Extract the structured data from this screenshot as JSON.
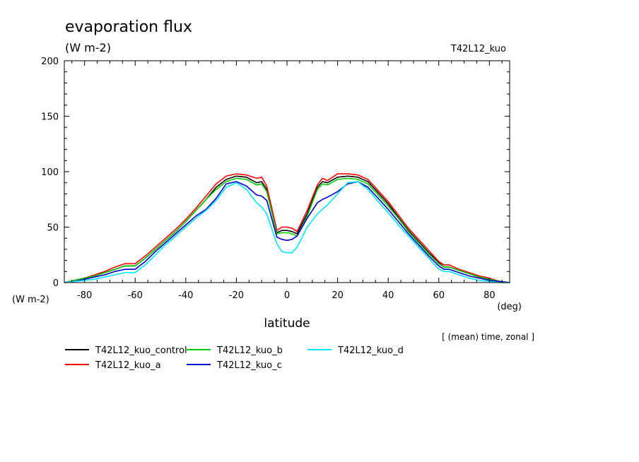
{
  "chart_data": {
    "type": "line",
    "title": "evaporation flux",
    "units": "(W m-2)",
    "dataset": "T42L12_kuo",
    "xlabel": "latitude",
    "ylabel_unit": "(W m-2)",
    "xunit": "(deg)",
    "note": "[ (mean) time, zonal ]",
    "xlim": [
      -88,
      88
    ],
    "ylim": [
      0,
      200
    ],
    "xticks": [
      -80,
      -60,
      -40,
      -20,
      0,
      20,
      40,
      60,
      80
    ],
    "yticks": [
      0,
      50,
      100,
      150,
      200
    ],
    "x": [
      -88,
      -84,
      -80,
      -76,
      -72,
      -68,
      -64,
      -60,
      -56,
      -52,
      -48,
      -44,
      -40,
      -36,
      -32,
      -28,
      -24,
      -20,
      -16,
      -12,
      -10,
      -8,
      -4,
      -2,
      0,
      2,
      4,
      8,
      12,
      14,
      16,
      20,
      24,
      28,
      32,
      36,
      40,
      44,
      48,
      52,
      56,
      60,
      62,
      64,
      68,
      72,
      76,
      80,
      84,
      88
    ],
    "series": [
      {
        "name": "T42L12_kuo_control",
        "color": "#000000",
        "values": [
          0,
          2,
          4,
          6,
          9,
          12,
          15,
          15,
          22,
          30,
          38,
          46,
          55,
          65,
          75,
          86,
          93,
          96,
          95,
          90,
          91,
          84,
          45,
          47,
          47,
          46,
          44,
          62,
          86,
          91,
          90,
          95,
          96,
          95,
          91,
          81,
          71,
          59,
          47,
          37,
          27,
          18,
          14,
          14,
          11,
          8,
          5,
          3,
          1,
          0
        ]
      },
      {
        "name": "T42L12_kuo_a",
        "color": "#ff0000",
        "values": [
          0,
          2,
          4,
          7,
          10,
          14,
          17,
          17,
          24,
          32,
          40,
          48,
          57,
          67,
          78,
          89,
          96,
          98,
          97,
          94,
          95,
          87,
          47,
          50,
          50,
          49,
          46,
          65,
          88,
          94,
          92,
          98,
          98,
          97,
          93,
          83,
          73,
          61,
          49,
          39,
          29,
          19,
          16,
          16,
          12,
          9,
          6,
          4,
          1,
          0
        ]
      },
      {
        "name": "T42L12_kuo_b",
        "color": "#00cc00",
        "values": [
          0,
          2,
          4,
          6,
          9,
          12,
          15,
          15,
          22,
          30,
          38,
          46,
          55,
          65,
          75,
          84,
          91,
          94,
          93,
          88,
          89,
          82,
          44,
          45,
          45,
          44,
          42,
          60,
          84,
          89,
          88,
          93,
          94,
          93,
          89,
          79,
          69,
          58,
          46,
          36,
          26,
          17,
          14,
          14,
          11,
          8,
          5,
          3,
          1,
          0
        ]
      },
      {
        "name": "T42L12_kuo_c",
        "color": "#0000cc",
        "values": [
          0,
          1,
          3,
          5,
          7,
          10,
          12,
          12,
          19,
          28,
          36,
          44,
          52,
          60,
          66,
          76,
          89,
          91,
          87,
          79,
          78,
          74,
          41,
          39,
          38,
          39,
          42,
          58,
          72,
          75,
          77,
          82,
          89,
          91,
          86,
          76,
          66,
          55,
          44,
          34,
          24,
          15,
          12,
          12,
          9,
          6,
          4,
          2,
          1,
          0
        ]
      },
      {
        "name": "T42L12_kuo_d",
        "color": "#00e5ff",
        "values": [
          0,
          1,
          2,
          3,
          5,
          7,
          9,
          9,
          16,
          25,
          34,
          42,
          50,
          58,
          65,
          74,
          86,
          90,
          84,
          72,
          68,
          62,
          35,
          28,
          27,
          27,
          32,
          50,
          62,
          66,
          70,
          80,
          90,
          91,
          84,
          73,
          63,
          52,
          42,
          32,
          22,
          12,
          10,
          10,
          7,
          4,
          2,
          1,
          0,
          0
        ]
      }
    ]
  }
}
